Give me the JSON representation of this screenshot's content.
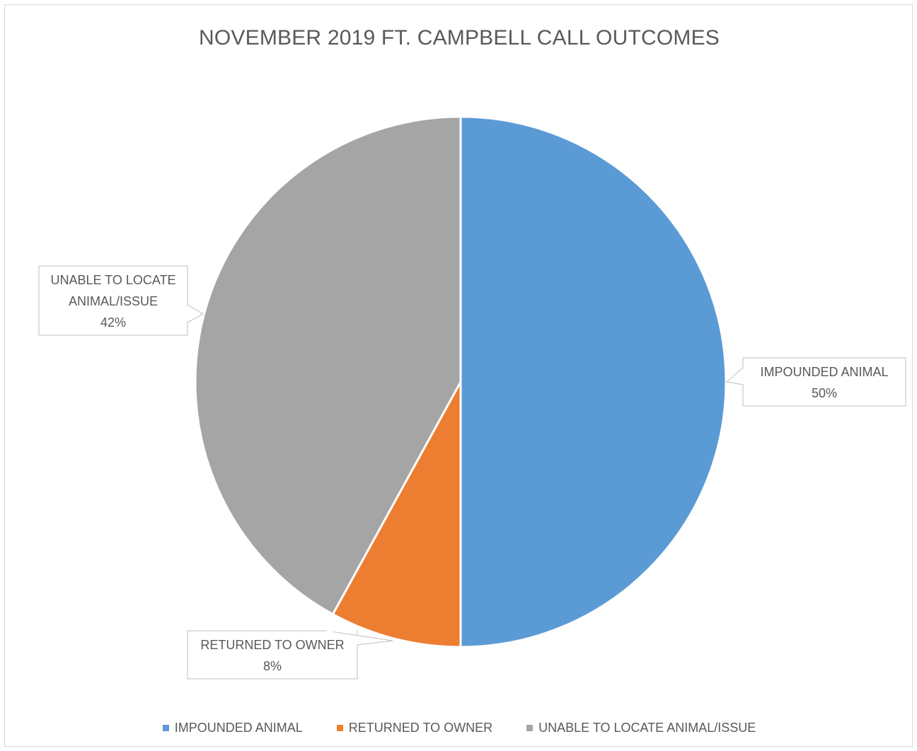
{
  "chart_data": {
    "type": "pie",
    "title": "NOVEMBER 2019 FT. CAMPBELL CALL OUTCOMES",
    "slices": [
      {
        "name": "IMPOUNDED ANIMAL",
        "value": 50,
        "label_lines": [
          "IMPOUNDED ANIMAL"
        ],
        "percent_label": "50%",
        "color": "#5b9bd5"
      },
      {
        "name": "RETURNED TO OWNER",
        "value": 8,
        "label_lines": [
          "RETURNED TO OWNER"
        ],
        "percent_label": "8%",
        "color": "#ed7d31"
      },
      {
        "name": "UNABLE TO LOCATE ANIMAL/ISSUE",
        "value": 42,
        "label_lines": [
          "UNABLE TO LOCATE",
          "ANIMAL/ISSUE"
        ],
        "percent_label": "42%",
        "color": "#a5a5a5"
      }
    ],
    "legend_position": "bottom",
    "start_angle": "top, clockwise"
  }
}
